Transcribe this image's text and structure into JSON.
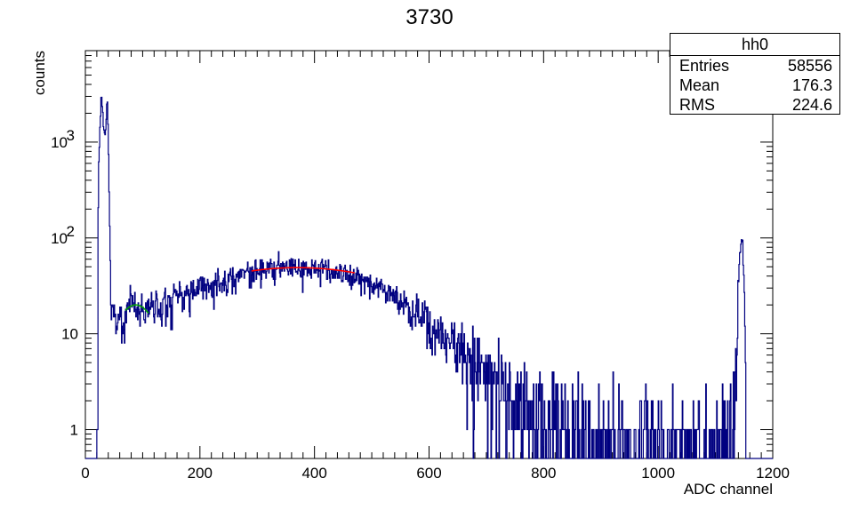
{
  "chart_data": {
    "type": "histogram",
    "title": "3730",
    "xlabel": "ADC channel",
    "ylabel": "counts",
    "xlim": [
      0,
      1200
    ],
    "ylim": [
      0.5,
      9000
    ],
    "yscale": "log",
    "x_ticks": [
      "0",
      "200",
      "400",
      "600",
      "800",
      "1000",
      "1200"
    ],
    "y_ticks": [
      {
        "value": 1,
        "label": "1"
      },
      {
        "value": 10,
        "label": "10"
      },
      {
        "value": 100,
        "label": "10",
        "exp": "2"
      },
      {
        "value": 1000,
        "label": "10",
        "exp": "3"
      }
    ],
    "series_color": "#000080",
    "fits": [
      {
        "color": "#00a000",
        "range": [
          70,
          110
        ],
        "peak": 20,
        "center": 88,
        "sigma": 35
      },
      {
        "color": "#ff0000",
        "range": [
          290,
          470
        ],
        "peak": 49,
        "center": 370,
        "sigma": 200
      }
    ],
    "profile": [
      [
        0,
        0
      ],
      [
        20,
        0
      ],
      [
        22,
        1.3
      ],
      [
        24,
        800
      ],
      [
        26,
        1400
      ],
      [
        28,
        3500
      ],
      [
        30,
        2000
      ],
      [
        32,
        1500
      ],
      [
        34,
        1100
      ],
      [
        36,
        1600
      ],
      [
        38,
        3200
      ],
      [
        40,
        900
      ],
      [
        42,
        150
      ],
      [
        44,
        18
      ],
      [
        50,
        14
      ],
      [
        60,
        15
      ],
      [
        80,
        19
      ],
      [
        100,
        18
      ],
      [
        150,
        23
      ],
      [
        200,
        29
      ],
      [
        250,
        38
      ],
      [
        300,
        46
      ],
      [
        350,
        49
      ],
      [
        400,
        48
      ],
      [
        450,
        42
      ],
      [
        500,
        33
      ],
      [
        550,
        22
      ],
      [
        600,
        13
      ],
      [
        650,
        7.5
      ],
      [
        700,
        3.5
      ],
      [
        750,
        1.8
      ],
      [
        800,
        1.2
      ],
      [
        850,
        0.9
      ],
      [
        900,
        0.8
      ],
      [
        950,
        0.7
      ],
      [
        1000,
        0.65
      ],
      [
        1050,
        0.6
      ],
      [
        1100,
        0.55
      ],
      [
        1130,
        0.7
      ],
      [
        1138,
        5
      ],
      [
        1142,
        60
      ],
      [
        1146,
        100
      ],
      [
        1150,
        30
      ],
      [
        1153,
        1
      ],
      [
        1156,
        0
      ],
      [
        1200,
        0
      ]
    ],
    "stats": {
      "name": "hh0",
      "entries_label": "Entries",
      "entries": "58556",
      "mean_label": "Mean",
      "mean": "176.3",
      "rms_label": "RMS",
      "rms": "224.6"
    }
  }
}
